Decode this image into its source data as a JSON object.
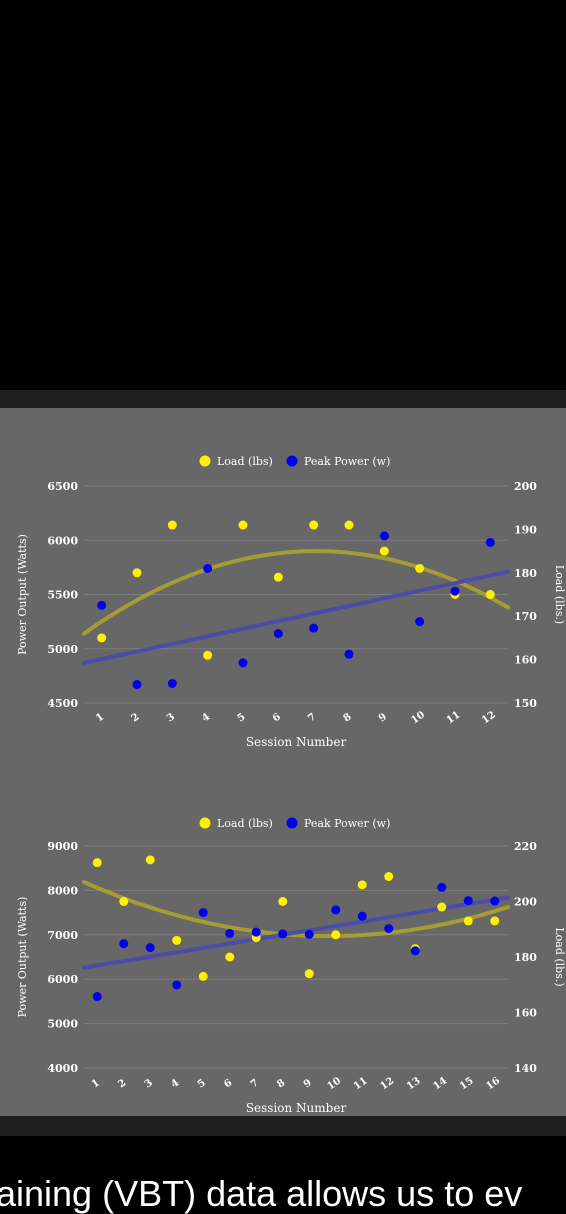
{
  "caption": "aining (VBT) data allows us to ev",
  "colors": {
    "load": "#ffef00",
    "power": "#0000ee",
    "load_trend": "#a9a032",
    "power_trend": "#4a4aac",
    "panel_bg": "#676767"
  },
  "chart_data": [
    {
      "type": "scatter",
      "title": "",
      "xlabel": "Session Number",
      "ylabel": "Power Output (Watts)",
      "y2label": "Load (lbs.)",
      "legend": "top-center",
      "x": [
        1,
        2,
        3,
        4,
        5,
        6,
        7,
        8,
        9,
        10,
        11,
        12
      ],
      "xlim": [
        0.5,
        12.5
      ],
      "ylim": [
        4500,
        6500
      ],
      "yticks": [
        4500,
        5000,
        5500,
        6000,
        6500
      ],
      "y2lim": [
        150,
        200
      ],
      "y2ticks": [
        150,
        160,
        170,
        180,
        190,
        200
      ],
      "series": [
        {
          "name": "Load (lbs)",
          "axis": "right",
          "values": [
            165,
            180,
            191,
            161,
            191,
            179,
            191,
            191,
            185,
            181,
            175,
            175
          ],
          "trend": {
            "kind": "quadratic",
            "values_at_x_start_peak_end": [
              [
                0.5,
                166
              ],
              [
                7,
                185
              ],
              [
                12.5,
                172
              ]
            ]
          }
        },
        {
          "name": "Peak Power (w)",
          "axis": "left",
          "values": [
            5400,
            4670,
            4680,
            5740,
            4870,
            5140,
            5190,
            4950,
            6040,
            5250,
            5530,
            5980
          ],
          "trend": {
            "kind": "linear",
            "values_at_x_start_end": [
              [
                0.5,
                4870
              ],
              [
                12.5,
                5710
              ]
            ]
          }
        }
      ]
    },
    {
      "type": "scatter",
      "title": "",
      "xlabel": "Session Number",
      "ylabel": "Power Output (Watts)",
      "y2label": "Load (lbs.)",
      "legend": "top-center",
      "x": [
        1,
        2,
        3,
        4,
        5,
        6,
        7,
        8,
        9,
        10,
        11,
        12,
        13,
        14,
        15,
        16
      ],
      "xlim": [
        0.5,
        16.5
      ],
      "ylim": [
        4000,
        9000
      ],
      "yticks": [
        4000,
        5000,
        6000,
        7000,
        8000,
        9000
      ],
      "y2lim": [
        140,
        220
      ],
      "y2ticks": [
        140,
        160,
        180,
        200,
        220
      ],
      "series": [
        {
          "name": "Load (lbs)",
          "axis": "right",
          "values": [
            214,
            200,
            215,
            186,
            173,
            180,
            187,
            200,
            174,
            188,
            206,
            209,
            183,
            198,
            193,
            193
          ],
          "trend": {
            "kind": "quadratic",
            "values_at_x_start_peak_end": [
              [
                0.5,
                207
              ],
              [
                8.3,
                188
              ],
              [
                16.5,
                198
              ]
            ]
          }
        },
        {
          "name": "Peak Power (w)",
          "axis": "left",
          "values": [
            5610,
            6800,
            6710,
            5870,
            7500,
            7030,
            7060,
            7020,
            7010,
            7560,
            7420,
            7140,
            6640,
            8070,
            7770,
            7760
          ],
          "trend": {
            "kind": "linear",
            "values_at_x_start_end": [
              [
                0.5,
                6260
              ],
              [
                16.5,
                7840
              ]
            ]
          }
        }
      ]
    }
  ]
}
